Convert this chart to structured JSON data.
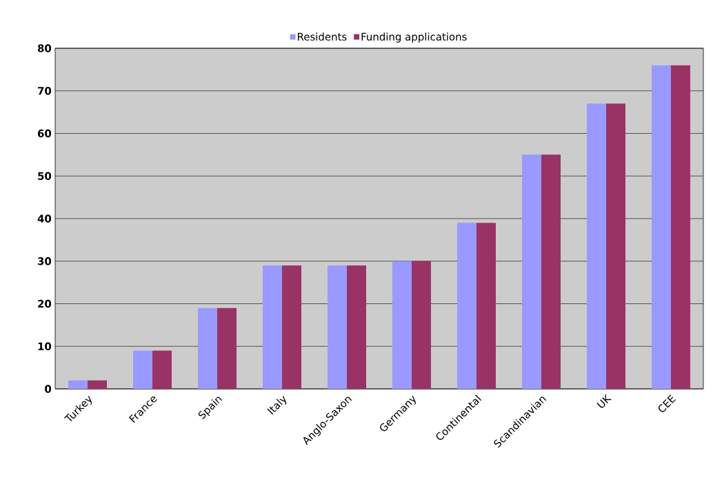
{
  "chart_data": {
    "type": "bar",
    "categories": [
      "Turkey",
      "France",
      "Spain",
      "Italy",
      "Anglo-Saxon",
      "Germany",
      "Continental",
      "Scandinavian",
      "UK",
      "CEE"
    ],
    "series": [
      {
        "name": "Residents",
        "color": "#9999ff",
        "values": [
          2,
          9,
          19,
          29,
          29,
          30,
          39,
          55,
          67,
          76
        ]
      },
      {
        "name": "Funding applications",
        "color": "#993366",
        "values": [
          2,
          9,
          19,
          29,
          29,
          30,
          39,
          55,
          67,
          76
        ]
      }
    ],
    "ylim": [
      0,
      80
    ],
    "yticks": [
      0,
      10,
      20,
      30,
      40,
      50,
      60,
      70,
      80
    ],
    "grid": "y",
    "legend": "top"
  }
}
